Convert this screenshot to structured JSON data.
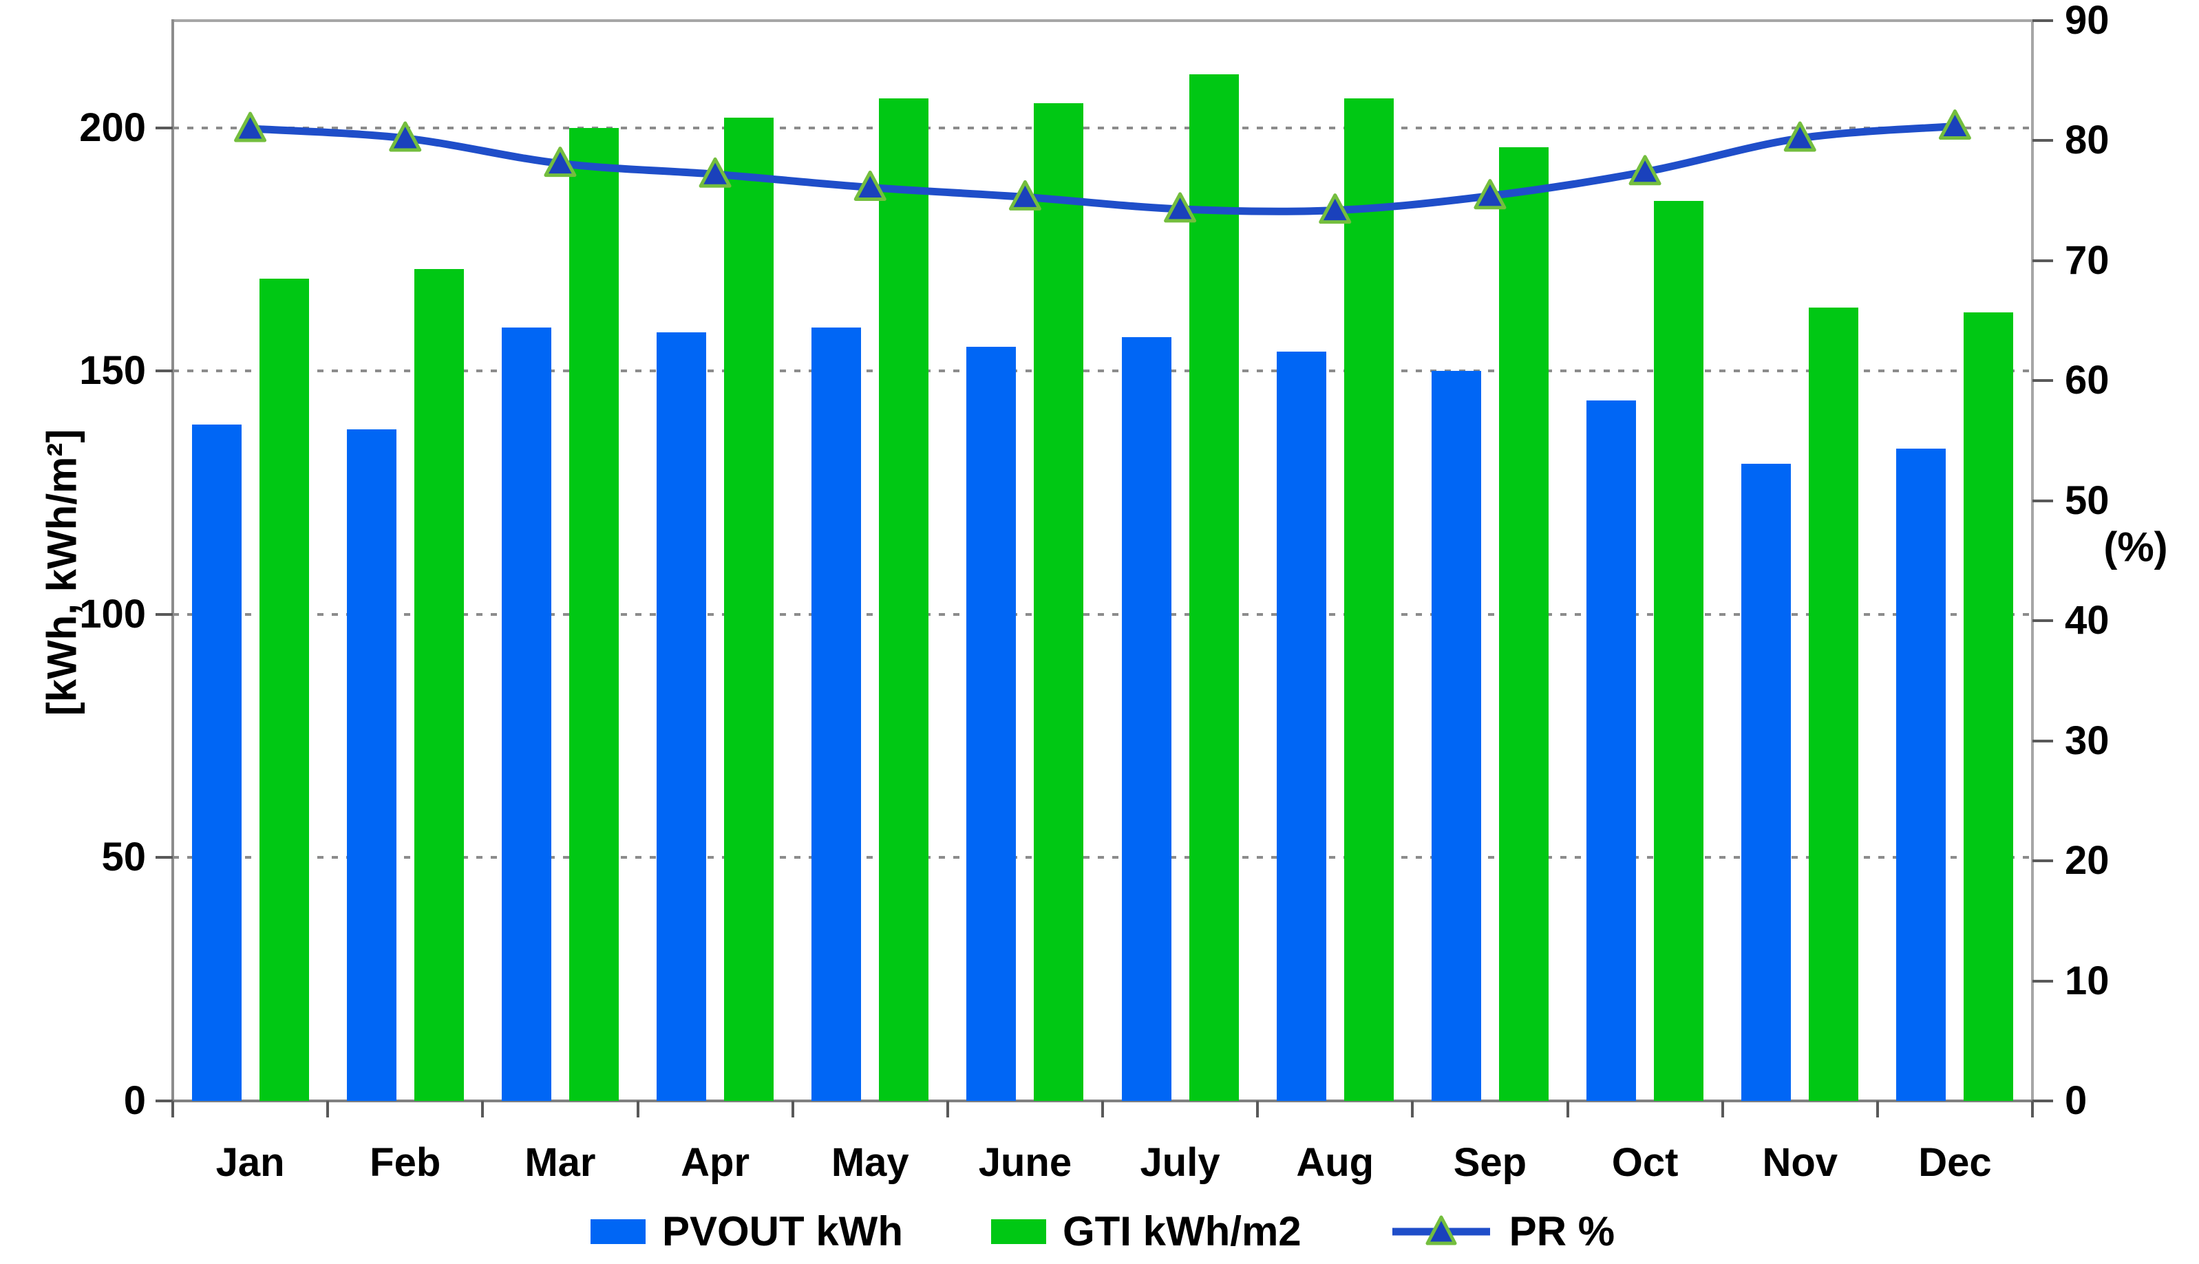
{
  "chart_data": {
    "type": "bar",
    "subtype": "grouped-bars-with-line-overlay",
    "title": "",
    "categories": [
      "Jan",
      "Feb",
      "Mar",
      "Apr",
      "May",
      "June",
      "July",
      "Aug",
      "Sep",
      "Oct",
      "Nov",
      "Dec"
    ],
    "series": [
      {
        "name": "PVOUT kWh",
        "chart": "bar",
        "axis": "left",
        "color": "#0066F5",
        "values": [
          139,
          138,
          159,
          158,
          159,
          155,
          157,
          154,
          150,
          144,
          131,
          134
        ]
      },
      {
        "name": "GTI kWh/m2",
        "chart": "bar",
        "axis": "left",
        "color": "#00C814",
        "values": [
          169,
          171,
          200,
          202,
          206,
          205,
          211,
          206,
          196,
          185,
          163,
          162
        ]
      },
      {
        "name": "PR %",
        "chart": "line",
        "axis": "right",
        "color": "#1F4EC9",
        "marker": "triangle",
        "marker_fill": "#1A41BC",
        "marker_edge": "#74BE3E",
        "values": [
          81,
          80.2,
          78.1,
          77.2,
          76.1,
          75.3,
          74.3,
          74.2,
          75.4,
          77.4,
          80.2,
          81.2
        ]
      }
    ],
    "left_axis": {
      "title": "[kWh, kWh/m²]",
      "tick_labels": [
        0,
        50,
        100,
        150,
        200
      ],
      "range": [
        0,
        222
      ]
    },
    "right_axis": {
      "title": "(%)",
      "tick_labels": [
        0,
        10,
        20,
        30,
        40,
        50,
        60,
        70,
        80,
        90
      ],
      "range": [
        0,
        90
      ]
    },
    "grid": {
      "horizontal": "dotted",
      "color": "#8C8C8C"
    },
    "legend_position": "bottom-center",
    "plot_background": "#FFFFFF"
  },
  "styles": {
    "background": "#FFFFFF",
    "axis_line_color": "#808080",
    "plot_border_color": "#A6A6A6",
    "text_color": "#000000"
  }
}
